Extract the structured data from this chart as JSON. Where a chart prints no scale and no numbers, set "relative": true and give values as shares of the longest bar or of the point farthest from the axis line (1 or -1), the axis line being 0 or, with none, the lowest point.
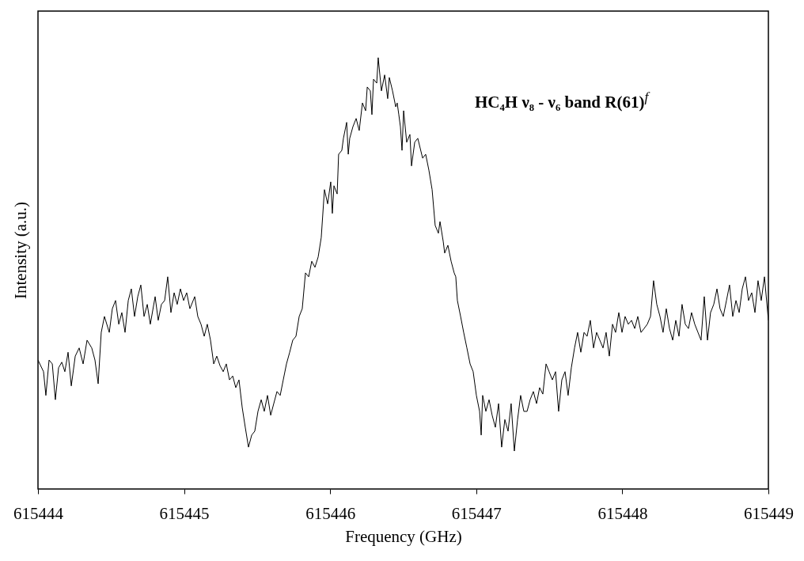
{
  "chart_data": {
    "type": "line",
    "xlabel": "Frequency (GHz)",
    "ylabel": "Intensity (a.u.)",
    "relative": true,
    "annotations": [
      "HC₄H ν₈ - ν₆ band R(61)$^{f}$"
    ],
    "xlim": [
      615444,
      615449
    ],
    "xticks": [
      615444,
      615445,
      615446,
      615447,
      615448,
      615449
    ],
    "x": [
      615444.0,
      615444.038,
      615444.054,
      615444.076,
      615444.098,
      615444.119,
      615444.141,
      615444.163,
      615444.184,
      615444.206,
      615444.228,
      615444.255,
      615444.282,
      615444.309,
      615444.336,
      615444.368,
      615444.39,
      615444.412,
      615444.433,
      615444.455,
      615444.488,
      615444.509,
      615444.531,
      615444.553,
      615444.574,
      615444.596,
      615444.618,
      615444.639,
      615444.661,
      615444.683,
      615444.704,
      615444.726,
      615444.748,
      615444.769,
      615444.802,
      615444.823,
      615444.845,
      615444.867,
      615444.888,
      615444.91,
      615444.932,
      615444.953,
      615444.975,
      615444.997,
      615445.018,
      615445.04,
      615445.073,
      615445.094,
      615445.116,
      615445.138,
      615445.159,
      615445.181,
      615445.203,
      615445.224,
      615445.246,
      615445.268,
      615445.289,
      615445.311,
      615445.333,
      615445.354,
      615445.376,
      615445.398,
      615445.419,
      615445.441,
      615445.463,
      615445.484,
      615445.506,
      615445.528,
      615445.549,
      615445.571,
      615445.593,
      615445.614,
      615445.636,
      615445.658,
      615445.679,
      615445.701,
      615445.723,
      615445.744,
      615445.766,
      615445.788,
      615445.809,
      615445.831,
      615445.853,
      615445.874,
      615445.896,
      615445.918,
      615445.939,
      615445.961,
      615445.983,
      615446.004,
      615446.015,
      615446.026,
      615446.048,
      615446.058,
      615446.08,
      615446.091,
      615446.113,
      615446.124,
      615446.134,
      615446.156,
      615446.178,
      615446.199,
      615446.221,
      615446.243,
      615446.254,
      615446.275,
      615446.286,
      615446.297,
      615446.319,
      615446.329,
      615446.351,
      615446.373,
      615446.394,
      615446.405,
      615446.427,
      615446.449,
      615446.459,
      615446.47,
      615446.481,
      615446.492,
      615446.503,
      615446.524,
      615446.546,
      615446.557,
      615446.579,
      615446.6,
      615446.633,
      615446.654,
      615446.676,
      615446.698,
      615446.719,
      615446.741,
      615446.752,
      615446.774,
      615446.784,
      615446.806,
      615446.828,
      615446.849,
      615446.86,
      615446.871,
      615446.893,
      615446.914,
      615446.936,
      615446.958,
      615446.979,
      615447.001,
      615447.023,
      615447.034,
      615447.044,
      615447.066,
      615447.088,
      615447.109,
      615447.131,
      615447.153,
      615447.174,
      615447.196,
      615447.218,
      615447.239,
      615447.261,
      615447.283,
      615447.304,
      615447.326,
      615447.348,
      615447.369,
      615447.391,
      615447.413,
      615447.434,
      615447.456,
      615447.478,
      615447.499,
      615447.521,
      615447.543,
      615447.564,
      615447.586,
      615447.608,
      615447.629,
      615447.651,
      615447.673,
      615447.694,
      615447.716,
      615447.738,
      615447.759,
      615447.781,
      615447.803,
      615447.824,
      615447.846,
      615447.868,
      615447.889,
      615447.911,
      615447.933,
      615447.954,
      615447.976,
      615447.998,
      615448.019,
      615448.041,
      615448.063,
      615448.085,
      615448.106,
      615448.128,
      615448.149,
      615448.171,
      615448.193,
      615448.214,
      615448.236,
      615448.258,
      615448.279,
      615448.301,
      615448.323,
      615448.345,
      615448.366,
      615448.388,
      615448.409,
      615448.431,
      615448.453,
      615448.474,
      615448.496,
      615448.518,
      615448.539,
      615448.561,
      615448.583,
      615448.604,
      615448.626,
      615448.648,
      615448.669,
      615448.691,
      615448.713,
      615448.734,
      615448.756,
      615448.778,
      615448.8,
      615448.821,
      615448.843,
      615448.864,
      615448.886,
      615448.908,
      615448.929,
      615448.951,
      615448.973,
      615449.0
    ],
    "series": [
      {
        "color": "#000000",
        "values": [
          0.299,
          0.272,
          0.217,
          0.299,
          0.29,
          0.207,
          0.281,
          0.294,
          0.272,
          0.317,
          0.239,
          0.308,
          0.327,
          0.29,
          0.345,
          0.327,
          0.299,
          0.244,
          0.363,
          0.4,
          0.363,
          0.418,
          0.437,
          0.382,
          0.409,
          0.363,
          0.437,
          0.464,
          0.4,
          0.446,
          0.473,
          0.4,
          0.428,
          0.382,
          0.446,
          0.391,
          0.428,
          0.437,
          0.492,
          0.409,
          0.455,
          0.428,
          0.464,
          0.437,
          0.455,
          0.418,
          0.446,
          0.4,
          0.382,
          0.354,
          0.382,
          0.345,
          0.29,
          0.308,
          0.286,
          0.272,
          0.29,
          0.253,
          0.262,
          0.235,
          0.253,
          0.189,
          0.143,
          0.097,
          0.125,
          0.134,
          0.18,
          0.207,
          0.18,
          0.217,
          0.171,
          0.198,
          0.226,
          0.217,
          0.253,
          0.29,
          0.317,
          0.345,
          0.354,
          0.4,
          0.418,
          0.501,
          0.492,
          0.528,
          0.514,
          0.538,
          0.583,
          0.694,
          0.661,
          0.712,
          0.639,
          0.703,
          0.684,
          0.776,
          0.785,
          0.813,
          0.85,
          0.776,
          0.813,
          0.84,
          0.859,
          0.831,
          0.895,
          0.877,
          0.932,
          0.923,
          0.868,
          0.95,
          0.941,
          1.0,
          0.923,
          0.96,
          0.905,
          0.954,
          0.923,
          0.886,
          0.895,
          0.868,
          0.84,
          0.785,
          0.877,
          0.804,
          0.822,
          0.749,
          0.804,
          0.813,
          0.767,
          0.776,
          0.739,
          0.694,
          0.611,
          0.593,
          0.62,
          0.574,
          0.547,
          0.565,
          0.528,
          0.501,
          0.492,
          0.437,
          0.4,
          0.363,
          0.327,
          0.29,
          0.272,
          0.217,
          0.18,
          0.125,
          0.217,
          0.18,
          0.207,
          0.171,
          0.143,
          0.198,
          0.097,
          0.161,
          0.134,
          0.198,
          0.088,
          0.161,
          0.217,
          0.18,
          0.18,
          0.207,
          0.226,
          0.198,
          0.235,
          0.22,
          0.29,
          0.272,
          0.253,
          0.272,
          0.18,
          0.253,
          0.272,
          0.217,
          0.281,
          0.327,
          0.363,
          0.317,
          0.363,
          0.354,
          0.391,
          0.327,
          0.363,
          0.345,
          0.327,
          0.363,
          0.308,
          0.382,
          0.363,
          0.409,
          0.363,
          0.4,
          0.382,
          0.391,
          0.372,
          0.4,
          0.363,
          0.372,
          0.382,
          0.4,
          0.483,
          0.428,
          0.4,
          0.363,
          0.418,
          0.372,
          0.345,
          0.391,
          0.354,
          0.428,
          0.382,
          0.372,
          0.409,
          0.382,
          0.363,
          0.345,
          0.446,
          0.345,
          0.409,
          0.428,
          0.464,
          0.418,
          0.4,
          0.437,
          0.473,
          0.4,
          0.437,
          0.409,
          0.464,
          0.492,
          0.437,
          0.455,
          0.409,
          0.483,
          0.437,
          0.492,
          0.391
        ]
      }
    ]
  }
}
